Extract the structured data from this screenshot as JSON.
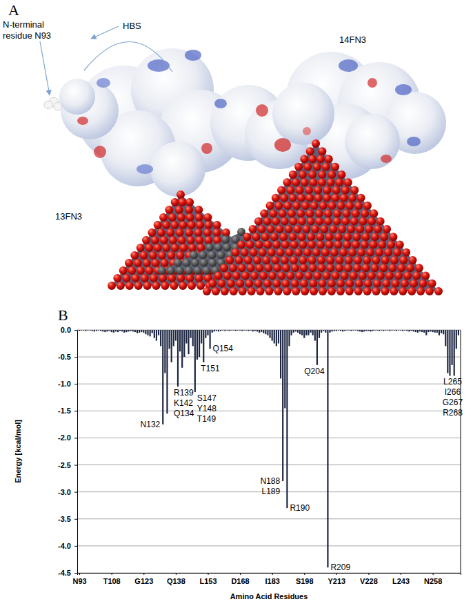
{
  "panel_letters": [
    "A",
    "B"
  ],
  "diagram": {
    "labels": {
      "n_terminal": [
        "N-terminal",
        "residue N93"
      ],
      "hbs": "HBS",
      "domain_13": "13FN3",
      "domain_14": "14FN3"
    }
  },
  "chart_data": {
    "type": "bar",
    "x_label": "Amino Acid Residues",
    "y_label": "Energy [kcal/mol]",
    "color": "#1c2541",
    "grid": true,
    "xlim": [
      92,
      271
    ],
    "xticks": [
      {
        "value": 93,
        "label": "N93"
      },
      {
        "value": 108,
        "label": "T108"
      },
      {
        "value": 123,
        "label": "G123"
      },
      {
        "value": 138,
        "label": "Q138"
      },
      {
        "value": 153,
        "label": "L153"
      },
      {
        "value": 168,
        "label": "D168"
      },
      {
        "value": 183,
        "label": "I183"
      },
      {
        "value": 198,
        "label": "S198"
      },
      {
        "value": 213,
        "label": "Y213"
      },
      {
        "value": 228,
        "label": "V228"
      },
      {
        "value": 243,
        "label": "L243"
      },
      {
        "value": 258,
        "label": "N258"
      }
    ],
    "ylim": [
      -4.5,
      0
    ],
    "yticks": [
      {
        "value": 0,
        "label": "0.0"
      },
      -0.5,
      {
        "value": -1,
        "label": "-1.0"
      },
      -1.5,
      {
        "value": -2,
        "label": "-2.0"
      },
      -2.5,
      {
        "value": -3,
        "label": "-3.0"
      },
      -3.5,
      {
        "value": -4,
        "label": "-4.0"
      },
      -4.5
    ],
    "x": [
      93,
      94,
      95,
      96,
      97,
      98,
      99,
      100,
      101,
      102,
      103,
      104,
      105,
      106,
      107,
      108,
      109,
      110,
      111,
      112,
      113,
      114,
      115,
      116,
      117,
      118,
      119,
      120,
      121,
      122,
      123,
      124,
      125,
      126,
      127,
      128,
      129,
      130,
      131,
      132,
      133,
      134,
      135,
      136,
      137,
      138,
      139,
      140,
      141,
      142,
      143,
      144,
      145,
      146,
      147,
      148,
      149,
      150,
      151,
      152,
      153,
      154,
      155,
      156,
      157,
      158,
      159,
      160,
      161,
      162,
      163,
      164,
      165,
      166,
      167,
      168,
      169,
      170,
      171,
      172,
      173,
      174,
      175,
      176,
      177,
      178,
      179,
      180,
      181,
      182,
      183,
      184,
      185,
      186,
      187,
      188,
      189,
      190,
      191,
      192,
      193,
      194,
      195,
      196,
      197,
      198,
      199,
      200,
      201,
      202,
      203,
      204,
      205,
      206,
      207,
      208,
      209,
      210,
      211,
      212,
      213,
      214,
      215,
      216,
      217,
      218,
      219,
      220,
      221,
      222,
      223,
      224,
      225,
      226,
      227,
      228,
      229,
      230,
      231,
      232,
      233,
      234,
      235,
      236,
      237,
      238,
      239,
      240,
      241,
      242,
      243,
      244,
      245,
      246,
      247,
      248,
      249,
      250,
      251,
      252,
      253,
      254,
      255,
      256,
      257,
      258,
      259,
      260,
      261,
      262,
      263,
      264,
      265,
      266,
      267,
      268,
      269,
      270
    ],
    "values": [
      -0.02,
      -0.01,
      -0.01,
      -0.02,
      -0.01,
      -0.01,
      -0.02,
      -0.03,
      -0.02,
      -0.01,
      -0.02,
      -0.03,
      -0.04,
      -0.03,
      -0.02,
      -0.04,
      -0.05,
      -0.03,
      -0.04,
      -0.02,
      -0.03,
      -0.05,
      -0.04,
      -0.03,
      -0.02,
      -0.03,
      -0.04,
      -0.06,
      -0.05,
      -0.04,
      -0.05,
      -0.08,
      -0.1,
      -0.12,
      -0.06,
      -0.15,
      -0.2,
      -0.1,
      -0.3,
      -1.75,
      -0.8,
      -1.55,
      -0.35,
      -0.6,
      -0.3,
      -0.2,
      -1.05,
      -0.4,
      -0.7,
      -0.5,
      -0.25,
      -0.45,
      -0.15,
      -0.3,
      -1.15,
      -0.55,
      -0.5,
      -0.25,
      -0.6,
      -0.15,
      -0.1,
      -0.35,
      -0.05,
      -0.03,
      -0.02,
      -0.03,
      -0.02,
      -0.01,
      -0.02,
      -0.01,
      -0.02,
      -0.01,
      -0.01,
      -0.02,
      -0.01,
      -0.01,
      -0.02,
      -0.01,
      -0.01,
      -0.02,
      -0.01,
      -0.03,
      -0.02,
      -0.03,
      -0.05,
      -0.04,
      -0.06,
      -0.08,
      -0.1,
      -0.15,
      -0.2,
      -0.25,
      -0.3,
      -0.25,
      -0.9,
      -2.8,
      -1.45,
      -3.3,
      -0.3,
      -0.1,
      -0.05,
      -0.03,
      -0.05,
      -0.08,
      -0.1,
      -0.15,
      -0.1,
      -0.1,
      -0.05,
      -0.1,
      -0.2,
      -0.65,
      -0.15,
      -0.05,
      -0.02,
      -0.05,
      -4.4,
      -0.05,
      -0.03,
      -0.02,
      -0.02,
      -0.01,
      -0.02,
      -0.03,
      -0.02,
      -0.01,
      -0.01,
      -0.02,
      -0.01,
      -0.01,
      -0.02,
      -0.03,
      -0.04,
      -0.03,
      -0.02,
      -0.02,
      -0.03,
      -0.02,
      -0.01,
      -0.01,
      -0.02,
      -0.01,
      -0.02,
      -0.01,
      -0.01,
      -0.02,
      -0.01,
      -0.01,
      -0.02,
      -0.01,
      -0.01,
      -0.02,
      -0.01,
      -0.02,
      -0.03,
      -0.02,
      -0.03,
      -0.04,
      -0.05,
      -0.03,
      -0.04,
      -0.05,
      -0.1,
      -0.04,
      -0.03,
      -0.04,
      -0.05,
      -0.05,
      -0.1,
      -0.06,
      -0.08,
      -0.3,
      -0.8,
      -0.85,
      -0.65,
      -0.85,
      -0.35,
      -0.1
    ],
    "annotations": [
      {
        "x": 132,
        "labels": [
          "N132"
        ]
      },
      {
        "x": 139,
        "labels": [
          "R139",
          "K142",
          "Q134"
        ]
      },
      {
        "x": 147,
        "labels": [
          "S147",
          "Y148",
          "T149"
        ]
      },
      {
        "x": 151,
        "labels": [
          "T151"
        ]
      },
      {
        "x": 154,
        "labels": [
          "Q154"
        ]
      },
      {
        "x": 188,
        "labels": [
          "N188",
          "L189"
        ]
      },
      {
        "x": 190,
        "labels": [
          "R190"
        ]
      },
      {
        "x": 204,
        "labels": [
          "Q204"
        ]
      },
      {
        "x": 209,
        "labels": [
          "R209"
        ]
      },
      {
        "x": 266,
        "labels": [
          "L265",
          "I266",
          "G267",
          "R268"
        ]
      }
    ]
  }
}
